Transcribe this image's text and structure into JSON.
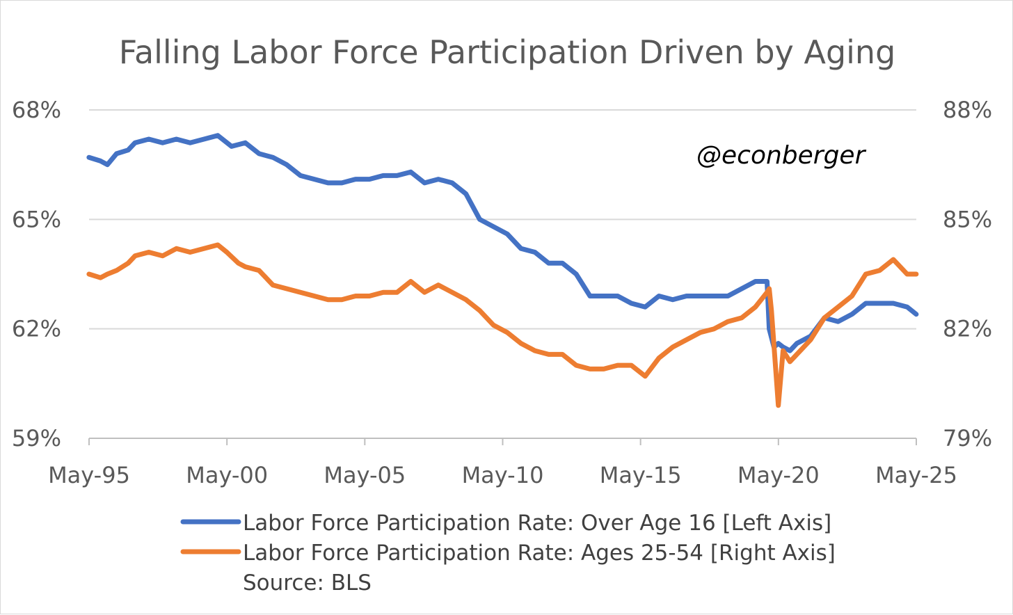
{
  "chart_data": {
    "type": "line",
    "title": "Falling Labor Force Participation Driven by Aging",
    "watermark": "@econberger",
    "x_labels": [
      "May-95",
      "May-00",
      "May-05",
      "May-10",
      "May-15",
      "May-20",
      "May-25"
    ],
    "xlim": [
      1995.333,
      2025.333
    ],
    "left_axis": {
      "ticks": [
        "68%",
        "65%",
        "62%",
        "59%"
      ],
      "values": [
        68,
        65,
        62,
        59
      ],
      "ylim": [
        59,
        68
      ]
    },
    "right_axis": {
      "ticks": [
        "88%",
        "85%",
        "82%",
        "79%"
      ],
      "values": [
        88,
        85,
        82,
        79
      ],
      "ylim": [
        79,
        88
      ]
    },
    "grid": "horizontal",
    "series": [
      {
        "name": "Labor Force Participation Rate: Over Age 16 [Left Axis]",
        "axis": "left",
        "color": "#4472C4",
        "x": [
          1995.33,
          1995.75,
          1996.0,
          1996.33,
          1996.75,
          1997.0,
          1997.5,
          1998.0,
          1998.5,
          1999.0,
          1999.5,
          2000.0,
          2000.5,
          2001.0,
          2001.5,
          2002.0,
          2002.5,
          2003.0,
          2003.5,
          2004.0,
          2004.5,
          2005.0,
          2005.5,
          2006.0,
          2006.5,
          2007.0,
          2007.5,
          2008.0,
          2008.5,
          2009.0,
          2009.5,
          2010.0,
          2010.5,
          2011.0,
          2011.5,
          2012.0,
          2012.5,
          2013.0,
          2013.5,
          2014.0,
          2014.5,
          2015.0,
          2015.5,
          2016.0,
          2016.5,
          2017.0,
          2017.5,
          2018.0,
          2018.5,
          2019.0,
          2019.5,
          2019.92,
          2020.0,
          2020.17,
          2020.33,
          2020.5,
          2020.75,
          2021.0,
          2021.5,
          2022.0,
          2022.5,
          2023.0,
          2023.5,
          2024.0,
          2024.5,
          2025.0,
          2025.33
        ],
        "values": [
          66.7,
          66.6,
          66.5,
          66.8,
          66.9,
          67.1,
          67.2,
          67.1,
          67.2,
          67.1,
          67.2,
          67.3,
          67.0,
          67.1,
          66.8,
          66.7,
          66.5,
          66.2,
          66.1,
          66.0,
          66.0,
          66.1,
          66.1,
          66.2,
          66.2,
          66.3,
          66.0,
          66.1,
          66.0,
          65.7,
          65.0,
          64.8,
          64.6,
          64.2,
          64.1,
          63.8,
          63.8,
          63.5,
          62.9,
          62.9,
          62.9,
          62.7,
          62.6,
          62.9,
          62.8,
          62.9,
          62.9,
          62.9,
          62.9,
          63.1,
          63.3,
          63.3,
          62.0,
          61.5,
          61.6,
          61.5,
          61.4,
          61.6,
          61.8,
          62.3,
          62.2,
          62.4,
          62.7,
          62.7,
          62.7,
          62.6,
          62.4
        ]
      },
      {
        "name": "Labor Force Participation Rate: Ages 25-54 [Right Axis]",
        "axis": "right",
        "color": "#ED7D31",
        "x": [
          1995.33,
          1995.75,
          1996.0,
          1996.33,
          1996.75,
          1997.0,
          1997.5,
          1998.0,
          1998.5,
          1999.0,
          1999.5,
          2000.0,
          2000.33,
          2000.75,
          2001.0,
          2001.5,
          2002.0,
          2002.5,
          2003.0,
          2003.5,
          2004.0,
          2004.5,
          2005.0,
          2005.5,
          2006.0,
          2006.5,
          2007.0,
          2007.5,
          2008.0,
          2008.5,
          2009.0,
          2009.5,
          2010.0,
          2010.5,
          2011.0,
          2011.5,
          2012.0,
          2012.5,
          2013.0,
          2013.5,
          2014.0,
          2014.5,
          2015.0,
          2015.5,
          2016.0,
          2016.5,
          2017.0,
          2017.5,
          2018.0,
          2018.5,
          2019.0,
          2019.5,
          2019.92,
          2020.0,
          2020.08,
          2020.33,
          2020.5,
          2020.75,
          2021.0,
          2021.5,
          2022.0,
          2022.5,
          2023.0,
          2023.5,
          2024.0,
          2024.5,
          2025.0,
          2025.33
        ],
        "values": [
          83.5,
          83.4,
          83.5,
          83.6,
          83.8,
          84.0,
          84.1,
          84.0,
          84.2,
          84.1,
          84.2,
          84.3,
          84.1,
          83.8,
          83.7,
          83.6,
          83.2,
          83.1,
          83.0,
          82.9,
          82.8,
          82.8,
          82.9,
          82.9,
          83.0,
          83.0,
          83.3,
          83.0,
          83.2,
          83.0,
          82.8,
          82.5,
          82.1,
          81.9,
          81.6,
          81.4,
          81.3,
          81.3,
          81.0,
          80.9,
          80.9,
          81.0,
          81.0,
          80.7,
          81.2,
          81.5,
          81.7,
          81.9,
          82.0,
          82.2,
          82.3,
          82.6,
          83.0,
          83.1,
          82.5,
          79.9,
          81.4,
          81.1,
          81.3,
          81.7,
          82.3,
          82.6,
          82.9,
          83.5,
          83.6,
          83.9,
          83.5,
          83.5
        ]
      }
    ],
    "legend": {
      "position": "bottom",
      "entries": [
        "Labor Force Participation Rate: Over Age 16 [Left Axis]",
        "Labor Force Participation Rate: Ages 25-54 [Right Axis]"
      ]
    },
    "source": "Source: BLS"
  }
}
